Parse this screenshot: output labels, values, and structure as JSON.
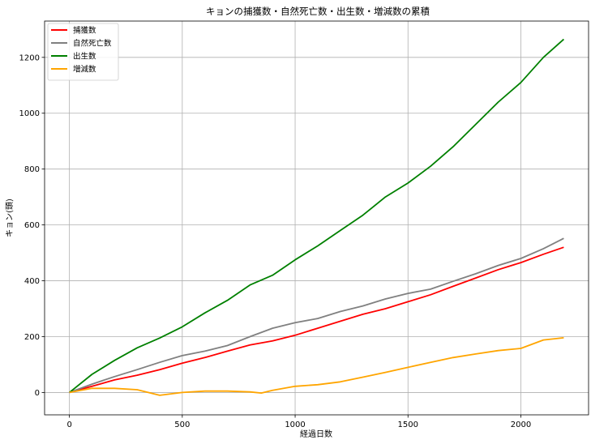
{
  "chart_data": {
    "type": "line",
    "title": "キョンの捕獲数・自然死亡数・出生数・増減数の累積",
    "xlabel": "経過日数",
    "ylabel": "キョン(頭)",
    "xlim": [
      -110,
      2300
    ],
    "ylim": [
      -80,
      1330
    ],
    "xticks": [
      0,
      500,
      1000,
      1500,
      2000
    ],
    "yticks": [
      0,
      200,
      400,
      600,
      800,
      1000,
      1200
    ],
    "xtick_labels": [
      "0",
      "500",
      "1000",
      "1500",
      "2000"
    ],
    "ytick_labels": [
      "0",
      "200",
      "400",
      "600",
      "800",
      "1000",
      "1200"
    ],
    "grid": true,
    "legend_position": "top-left",
    "series": [
      {
        "name": "捕獲数",
        "color": "#ff0000",
        "x": [
          0,
          100,
          200,
          300,
          400,
          500,
          600,
          700,
          800,
          900,
          1000,
          1100,
          1200,
          1300,
          1400,
          1500,
          1600,
          1700,
          1800,
          1900,
          2000,
          2100,
          2190
        ],
        "values": [
          0,
          22,
          45,
          62,
          82,
          105,
          125,
          148,
          170,
          185,
          205,
          230,
          255,
          280,
          300,
          325,
          350,
          380,
          410,
          440,
          465,
          495,
          520
        ]
      },
      {
        "name": "自然死亡数",
        "color": "#808080",
        "x": [
          0,
          100,
          200,
          300,
          400,
          500,
          600,
          700,
          800,
          900,
          1000,
          1100,
          1200,
          1300,
          1400,
          1500,
          1600,
          1700,
          1800,
          1900,
          2000,
          2100,
          2190
        ],
        "values": [
          0,
          30,
          57,
          82,
          108,
          132,
          148,
          168,
          200,
          230,
          250,
          265,
          290,
          310,
          335,
          355,
          370,
          398,
          425,
          455,
          480,
          515,
          552
        ]
      },
      {
        "name": "出生数",
        "color": "#008000",
        "x": [
          0,
          100,
          200,
          300,
          400,
          500,
          600,
          700,
          800,
          900,
          1000,
          1100,
          1200,
          1300,
          1400,
          1500,
          1600,
          1700,
          1800,
          1900,
          2000,
          2100,
          2190
        ],
        "values": [
          0,
          65,
          115,
          160,
          195,
          235,
          285,
          330,
          385,
          420,
          475,
          525,
          580,
          635,
          700,
          750,
          810,
          880,
          960,
          1040,
          1110,
          1200,
          1265
        ]
      },
      {
        "name": "増減数",
        "color": "#ffa500",
        "x": [
          0,
          100,
          200,
          300,
          400,
          450,
          500,
          600,
          700,
          800,
          850,
          900,
          1000,
          1100,
          1200,
          1300,
          1400,
          1500,
          1600,
          1700,
          1800,
          1900,
          2000,
          2100,
          2190
        ],
        "values": [
          0,
          15,
          15,
          10,
          -10,
          -5,
          0,
          5,
          5,
          2,
          -2,
          8,
          22,
          28,
          38,
          55,
          72,
          90,
          108,
          125,
          138,
          150,
          158,
          188,
          196
        ]
      }
    ]
  }
}
